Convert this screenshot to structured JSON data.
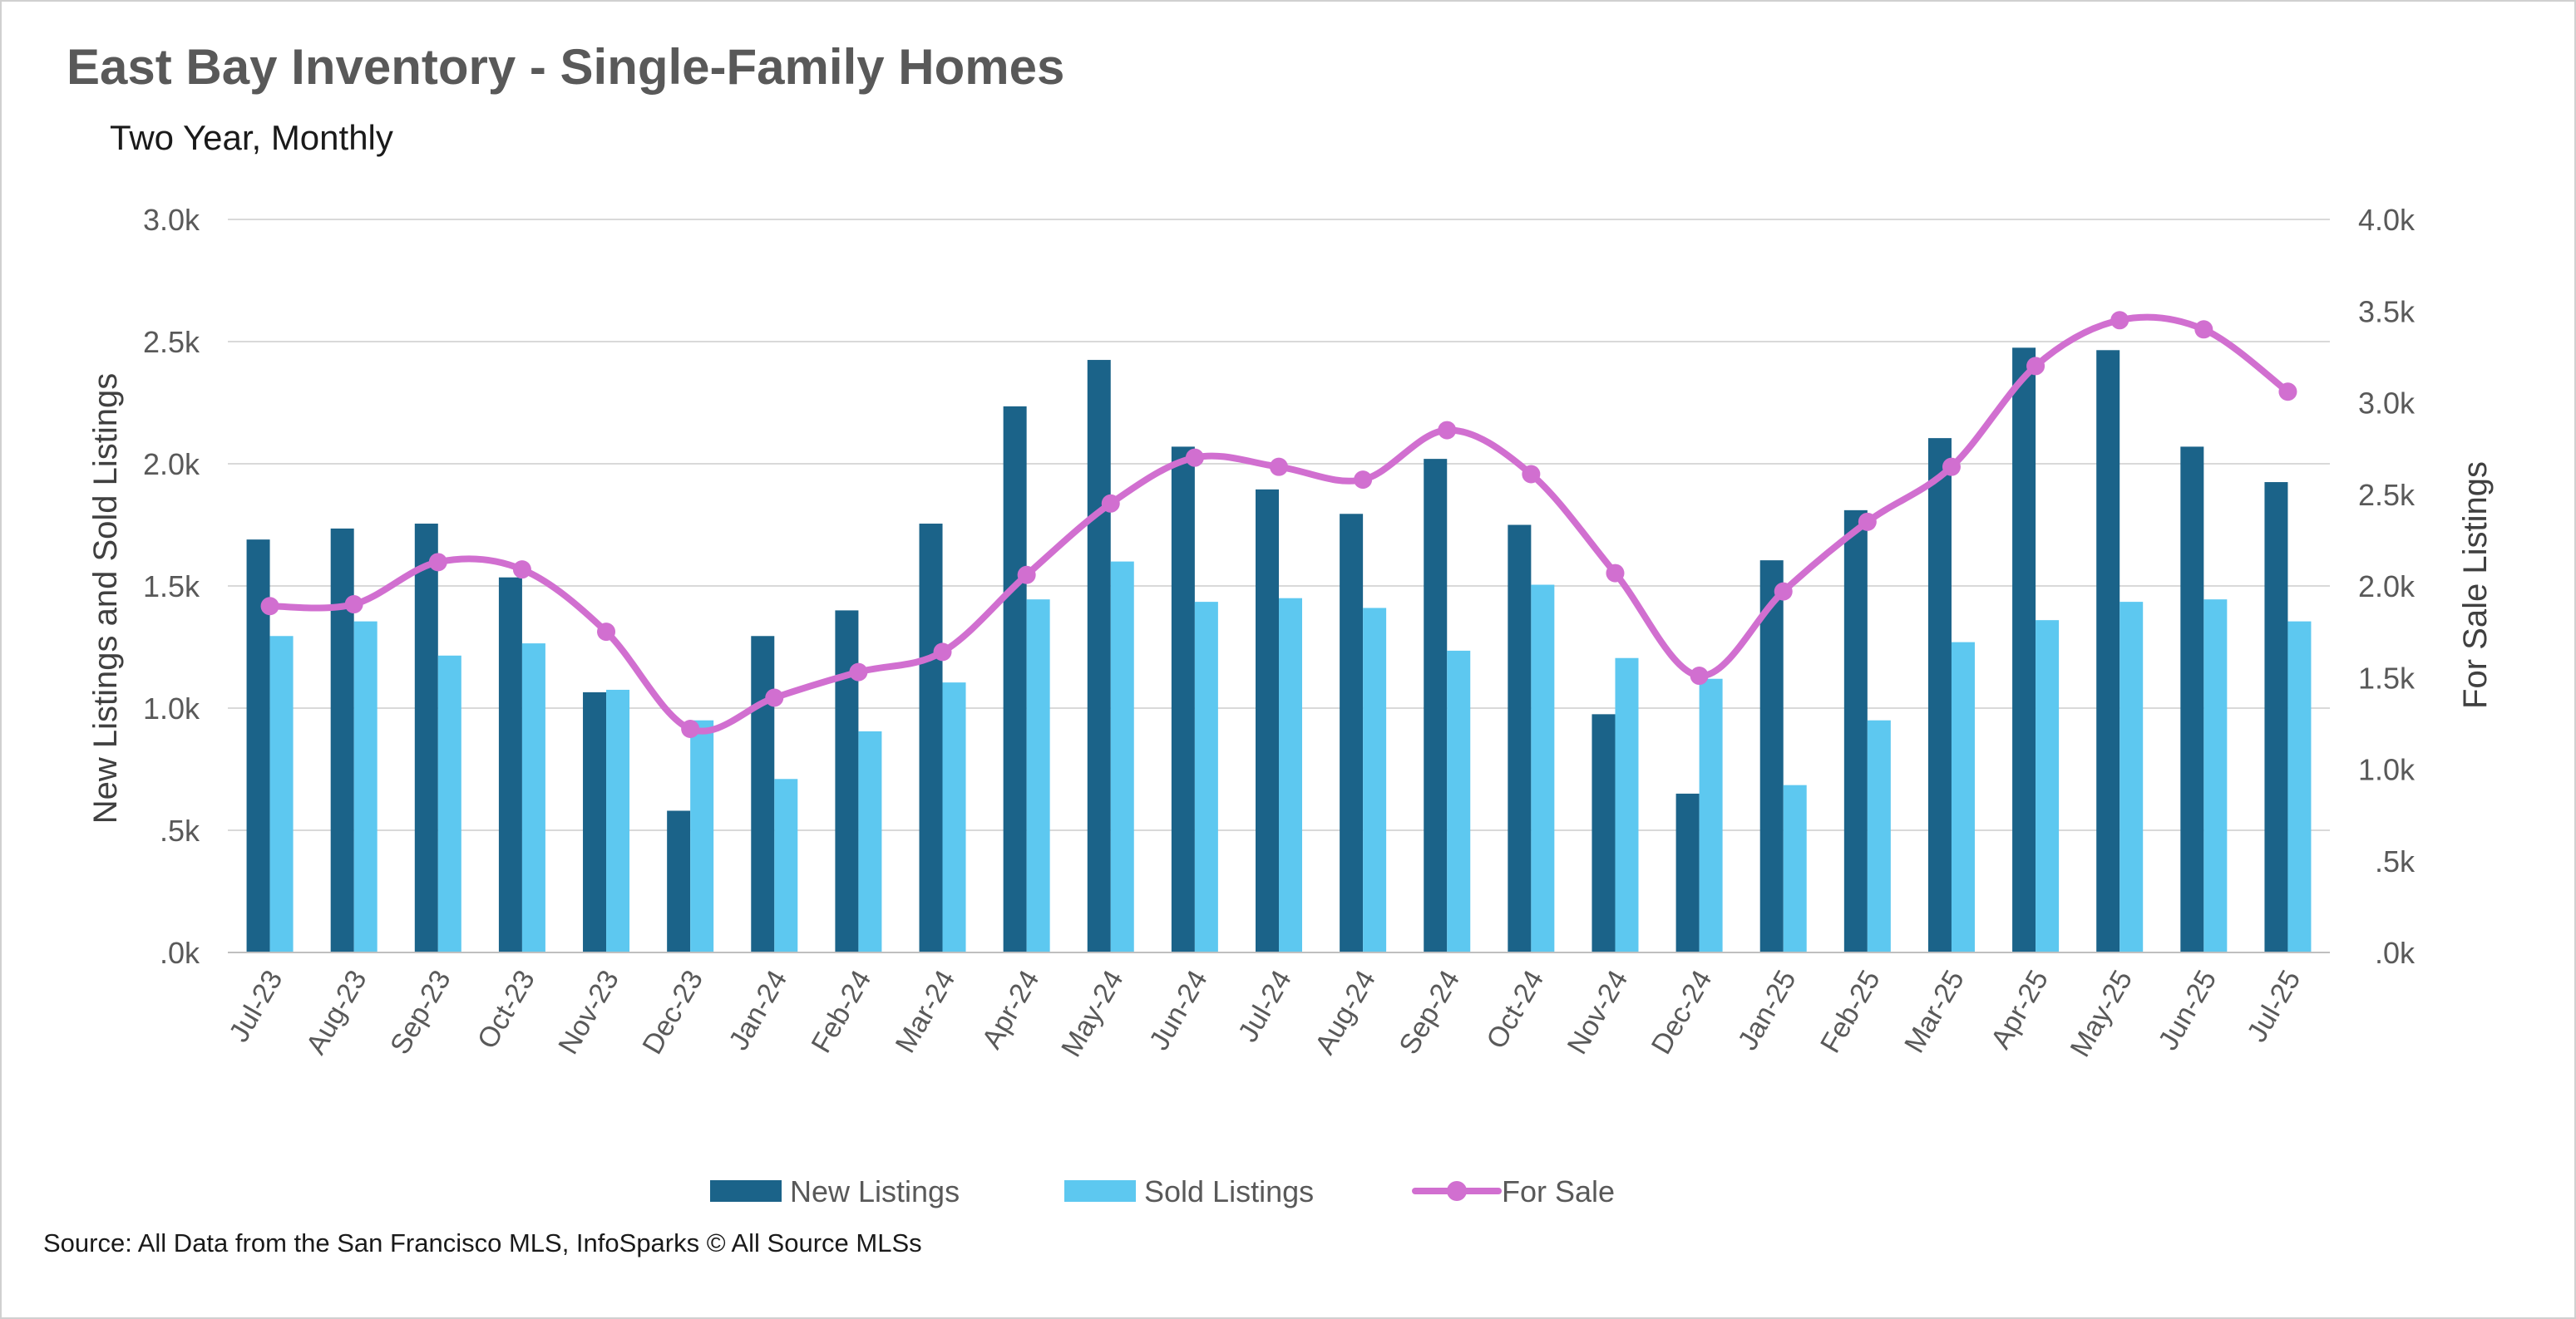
{
  "header": {
    "title": "East Bay Inventory - Single-Family Homes",
    "subtitle": "Two Year, Monthly"
  },
  "footer": {
    "source": "Source: All Data from the San Francisco MLS, InfoSparks © All Source MLSs"
  },
  "colors": {
    "new_listings": "#1b6389",
    "sold_listings": "#5dc8f0",
    "for_sale": "#d16fd0",
    "grid": "#d9d9d9",
    "axis_text": "#595959"
  },
  "chart_data": {
    "type": "bar",
    "categories": [
      "Jul-23",
      "Aug-23",
      "Sep-23",
      "Oct-23",
      "Nov-23",
      "Dec-23",
      "Jan-24",
      "Feb-24",
      "Mar-24",
      "Apr-24",
      "May-24",
      "Jun-24",
      "Jul-24",
      "Aug-24",
      "Sep-24",
      "Oct-24",
      "Nov-24",
      "Dec-24",
      "Jan-25",
      "Feb-25",
      "Mar-25",
      "Apr-25",
      "May-25",
      "Jun-25",
      "Jul-25"
    ],
    "series": [
      {
        "name": "New Listings",
        "type": "bar",
        "axis": "left",
        "values": [
          1690,
          1735,
          1755,
          1535,
          1065,
          580,
          1295,
          1400,
          1755,
          2235,
          2425,
          2070,
          1895,
          1795,
          2020,
          1750,
          975,
          650,
          1605,
          1810,
          2105,
          2475,
          2465,
          2070,
          1925
        ]
      },
      {
        "name": "Sold Listings",
        "type": "bar",
        "axis": "left",
        "values": [
          1295,
          1355,
          1215,
          1265,
          1075,
          950,
          710,
          905,
          1105,
          1445,
          1600,
          1435,
          1450,
          1410,
          1235,
          1505,
          1205,
          1120,
          685,
          950,
          1270,
          1360,
          1435,
          1445,
          1355
        ]
      },
      {
        "name": "For Sale",
        "type": "line",
        "axis": "right",
        "values": [
          1890,
          1900,
          2130,
          2090,
          1750,
          1220,
          1390,
          1530,
          1640,
          2060,
          2450,
          2700,
          2650,
          2580,
          2850,
          2610,
          2070,
          1510,
          1970,
          2350,
          2650,
          3200,
          3450,
          3400,
          3060
        ]
      }
    ],
    "ylabel": "New Listings and Sold Listings",
    "y2label": "For Sale Listings",
    "ylim": [
      0,
      3000
    ],
    "y2lim": [
      0,
      4000
    ],
    "yticks": [
      ".0k",
      ".5k",
      "1.0k",
      "1.5k",
      "2.0k",
      "2.5k",
      "3.0k"
    ],
    "y2ticks": [
      ".0k",
      ".5k",
      "1.0k",
      "1.5k",
      "2.0k",
      "2.5k",
      "3.0k",
      "3.5k",
      "4.0k"
    ],
    "grid": true,
    "legend": "bottom"
  }
}
